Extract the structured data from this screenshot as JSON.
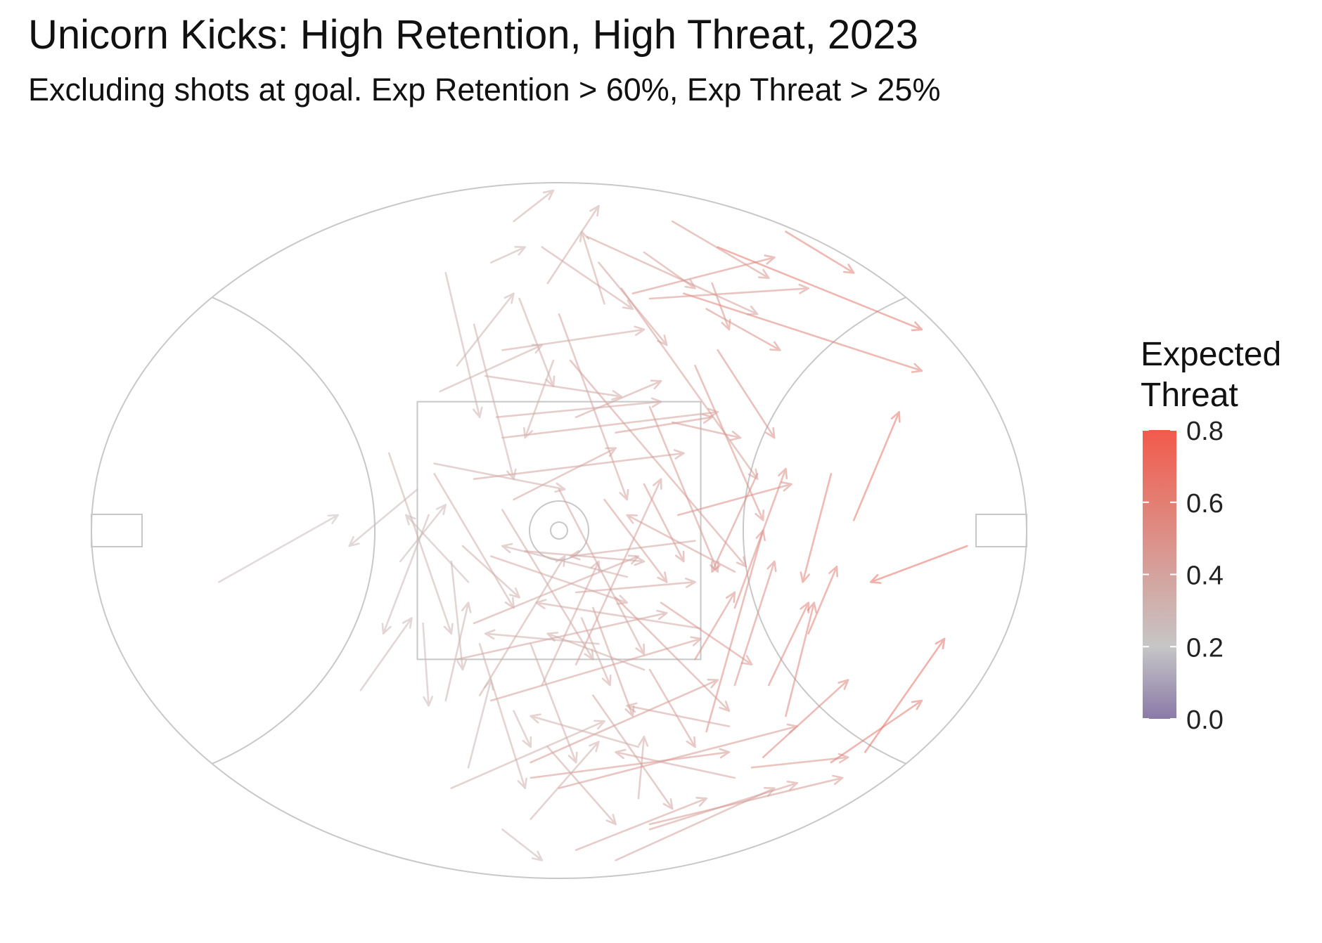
{
  "chart_data": {
    "type": "arrow-field",
    "title": "Unicorn Kicks: High Retention, High Threat, 2023",
    "subtitle": "Excluding shots at goal. Exp Retention > 60%, Exp Threat > 25%",
    "legend": {
      "title_lines": [
        "Expected",
        "Threat"
      ],
      "position": "right",
      "ticks": [
        "0.0",
        "0.2",
        "0.4",
        "0.6",
        "0.8"
      ],
      "range": [
        0,
        0.8
      ],
      "color_stops": [
        {
          "value": 0.0,
          "color": "#8a7aa8"
        },
        {
          "value": 0.2,
          "color": "#c6c6c6"
        },
        {
          "value": 0.8,
          "color": "#f25a4a"
        }
      ]
    },
    "ground": {
      "length": 165,
      "width": 135,
      "center_square": 50,
      "arc_radius": 50,
      "line_color": "#c8c8c8"
    },
    "arrows": [
      {
        "x1": -60,
        "y1": 10,
        "x2": -39,
        "y2": -3,
        "xt": 0.24
      },
      {
        "x1": -25,
        "y1": -8,
        "x2": -37,
        "y2": 3,
        "xt": 0.26
      },
      {
        "x1": -10,
        "y1": 58,
        "x2": -3,
        "y2": 64,
        "xt": 0.28
      },
      {
        "x1": -19,
        "y1": 50,
        "x2": 8,
        "y2": 37,
        "xt": 0.32
      },
      {
        "x1": 14,
        "y1": 52,
        "x2": 15,
        "y2": 40,
        "xt": 0.35
      },
      {
        "x1": 16,
        "y1": 57,
        "x2": 50,
        "y2": 48,
        "xt": 0.45
      },
      {
        "x1": 34,
        "y1": 46,
        "x2": 51,
        "y2": 44,
        "xt": 0.48
      },
      {
        "x1": 36,
        "y1": 44,
        "x2": 51,
        "y2": 29,
        "xt": 0.55
      },
      {
        "x1": 48,
        "y1": 45,
        "x2": 64,
        "y2": 33,
        "xt": 0.6
      },
      {
        "x1": 54,
        "y1": 43,
        "x2": 68,
        "y2": 21,
        "xt": 0.65
      },
      {
        "x1": 72,
        "y1": 3,
        "x2": 55,
        "y2": 10,
        "xt": 0.68
      },
      {
        "x1": 52,
        "y1": -2,
        "x2": 60,
        "y2": -23,
        "xt": 0.63
      },
      {
        "x1": 48,
        "y1": -11,
        "x2": 43,
        "y2": 10,
        "xt": 0.58
      },
      {
        "x1": 35,
        "y1": -11,
        "x2": 27,
        "y2": 8,
        "xt": 0.5
      },
      {
        "x1": 40,
        "y1": 36,
        "x2": 45,
        "y2": 14,
        "xt": 0.55
      },
      {
        "x1": 31,
        "y1": 30,
        "x2": 38,
        "y2": 6,
        "xt": 0.52
      },
      {
        "x1": 26,
        "y1": 39,
        "x2": 36,
        "y2": 0,
        "xt": 0.52
      },
      {
        "x1": 24,
        "y1": 25,
        "x2": 31,
        "y2": 12,
        "xt": 0.5
      },
      {
        "x1": 31,
        "y1": 15,
        "x2": 40,
        "y2": -12,
        "xt": 0.52
      },
      {
        "x1": 21,
        "y1": -3,
        "x2": 41,
        "y2": -9,
        "xt": 0.5
      },
      {
        "x1": 10,
        "y1": -19,
        "x2": 27,
        "y2": -22,
        "xt": 0.45
      },
      {
        "x1": 26,
        "y1": -43,
        "x2": 39,
        "y2": -35,
        "xt": 0.5
      },
      {
        "x1": 22,
        "y1": -46,
        "x2": 64,
        "y2": -31,
        "xt": 0.58
      },
      {
        "x1": 13,
        "y1": -46,
        "x2": 38,
        "y2": -53,
        "xt": 0.5
      },
      {
        "x1": 28,
        "y1": -55,
        "x2": 64,
        "y2": -39,
        "xt": 0.62
      },
      {
        "x1": 40,
        "y1": -58,
        "x2": 52,
        "y2": -50,
        "xt": 0.58
      },
      {
        "x1": 28,
        "y1": -35,
        "x2": 38,
        "y2": -18,
        "xt": 0.5
      },
      {
        "x1": 27,
        "y1": -48,
        "x2": 30,
        "y2": -39,
        "xt": 0.48
      },
      {
        "x1": 15,
        "y1": -54,
        "x2": 24,
        "y2": -47,
        "xt": 0.42
      },
      {
        "x1": 5,
        "y1": -57,
        "x2": 35,
        "y2": -42,
        "xt": 0.42
      },
      {
        "x1": 20,
        "y1": -60,
        "x2": 37,
        "y2": -49,
        "xt": 0.45
      },
      {
        "x1": 16,
        "y1": -45,
        "x2": 44,
        "y2": -47,
        "xt": 0.47
      },
      {
        "x1": 3,
        "y1": -22,
        "x2": 18,
        "y2": -29,
        "xt": 0.4
      },
      {
        "x1": -8,
        "y1": -6,
        "x2": 10,
        "y2": -16,
        "xt": 0.38
      },
      {
        "x1": -15,
        "y1": -10,
        "x2": 22,
        "y2": -15,
        "xt": 0.4
      },
      {
        "x1": -10,
        "y1": -18,
        "x2": 28,
        "y2": -23,
        "xt": 0.4
      },
      {
        "x1": -15,
        "y1": 18,
        "x2": 14,
        "y2": 5,
        "xt": 0.38
      },
      {
        "x1": -18,
        "y1": 25,
        "x2": 19,
        "y2": 16,
        "xt": 0.4
      },
      {
        "x1": -12,
        "y1": 33,
        "x2": 25,
        "y2": 21,
        "xt": 0.42
      },
      {
        "x1": -5,
        "y1": 45,
        "x2": 28,
        "y2": 29,
        "xt": 0.45
      },
      {
        "x1": -5,
        "y1": 48,
        "x2": 30,
        "y2": 43,
        "xt": 0.45
      },
      {
        "x1": 0,
        "y1": 50,
        "x2": 42,
        "y2": 38,
        "xt": 0.45
      },
      {
        "x1": 3,
        "y1": 62,
        "x2": 26,
        "y2": 52,
        "xt": 0.4
      },
      {
        "x1": 10,
        "y1": 64,
        "x2": 38,
        "y2": 50,
        "xt": 0.4
      },
      {
        "x1": 16,
        "y1": 58,
        "x2": 42,
        "y2": 49,
        "xt": 0.42
      },
      {
        "x1": -8,
        "y1": 35,
        "x2": -5,
        "y2": 42,
        "xt": 0.3
      },
      {
        "x1": -2,
        "y1": 42,
        "x2": 10,
        "y2": 57,
        "xt": 0.35
      },
      {
        "x1": 6,
        "y1": 32,
        "x2": 20,
        "y2": 54,
        "xt": 0.38
      },
      {
        "x1": 16,
        "y1": 27,
        "x2": 24,
        "y2": 42,
        "xt": 0.42
      },
      {
        "x1": -14,
        "y1": 22,
        "x2": -6,
        "y2": 50,
        "xt": 0.32
      },
      {
        "x1": -5,
        "y1": 22,
        "x2": 3,
        "y2": 45,
        "xt": 0.34
      },
      {
        "x1": 4,
        "y1": 17,
        "x2": 9,
        "y2": 30,
        "xt": 0.36
      },
      {
        "x1": -19,
        "y1": 6,
        "x2": -17,
        "y2": 27,
        "xt": 0.3
      },
      {
        "x1": -30,
        "y1": -15,
        "x2": -19,
        "y2": 20,
        "xt": 0.3
      },
      {
        "x1": -22,
        "y1": -11,
        "x2": -8,
        "y2": 15,
        "xt": 0.33
      },
      {
        "x1": -10,
        "y1": -4,
        "x2": 6,
        "y2": 25,
        "xt": 0.36
      },
      {
        "x1": 0,
        "y1": -8,
        "x2": 15,
        "y2": 24,
        "xt": 0.38
      },
      {
        "x1": 8,
        "y1": -6,
        "x2": 19,
        "y2": 10,
        "xt": 0.42
      },
      {
        "x1": 15,
        "y1": -9,
        "x2": 22,
        "y2": 6,
        "xt": 0.44
      },
      {
        "x1": -23,
        "y1": -3,
        "x2": -31,
        "y2": 20,
        "xt": 0.28
      },
      {
        "x1": -35,
        "y1": 31,
        "x2": -26,
        "y2": 17,
        "xt": 0.28
      },
      {
        "x1": -20,
        "y1": 33,
        "x2": -16,
        "y2": 14,
        "xt": 0.3
      },
      {
        "x1": -14,
        "y1": 32,
        "x2": 1,
        "y2": 5,
        "xt": 0.33
      },
      {
        "x1": -3,
        "y1": 30,
        "x2": 7,
        "y2": 6,
        "xt": 0.36
      },
      {
        "x1": 3,
        "y1": 26,
        "x2": 18,
        "y2": -10,
        "xt": 0.4
      },
      {
        "x1": -1,
        "y1": -33,
        "x2": -6,
        "y2": -18,
        "xt": 0.32
      },
      {
        "x1": -20,
        "y1": -50,
        "x2": -14,
        "y2": -22,
        "xt": 0.3
      },
      {
        "x1": -15,
        "y1": -40,
        "x2": -8,
        "y2": -10,
        "xt": 0.32
      },
      {
        "x1": -7,
        "y1": -45,
        "x2": -1,
        "y2": -28,
        "xt": 0.34
      },
      {
        "x1": 0,
        "y1": -42,
        "x2": 12,
        "y2": -6,
        "xt": 0.38
      },
      {
        "x1": -3,
        "y1": -55,
        "x2": 13,
        "y2": -43,
        "xt": 0.36
      },
      {
        "x1": 7,
        "y1": -52,
        "x2": 19,
        "y2": -36,
        "xt": 0.4
      },
      {
        "x1": 8,
        "y1": -44,
        "x2": 4,
        "y2": -58,
        "xt": 0.36
      },
      {
        "x1": -8,
        "y1": -60,
        "x2": -1,
        "y2": -66,
        "xt": 0.32
      },
      {
        "x1": -2,
        "y1": -48,
        "x2": 7,
        "y2": -63,
        "xt": 0.34
      },
      {
        "x1": -12,
        "y1": -52,
        "x2": -6,
        "y2": -55,
        "xt": 0.3
      },
      {
        "x1": -10,
        "y1": -35,
        "x2": 15,
        "y2": -39,
        "xt": 0.36
      },
      {
        "x1": -11,
        "y1": -22,
        "x2": 18,
        "y2": -25,
        "xt": 0.38
      },
      {
        "x1": -21,
        "y1": -27,
        "x2": -3,
        "y2": -36,
        "xt": 0.32
      },
      {
        "x1": -22,
        "y1": -13,
        "x2": 1,
        "y2": -8,
        "xt": 0.33
      },
      {
        "x1": -17,
        "y1": 3,
        "x2": -7,
        "y2": 13,
        "xt": 0.32
      },
      {
        "x1": -12,
        "y1": 5,
        "x2": 12,
        "y2": 14,
        "xt": 0.36
      },
      {
        "x1": 12,
        "y1": 9,
        "x2": -10,
        "y2": 3,
        "xt": 0.34
      },
      {
        "x1": 7,
        "y1": 22,
        "x2": -13,
        "y2": 20,
        "xt": 0.32
      },
      {
        "x1": 15,
        "y1": 27,
        "x2": -2,
        "y2": 20,
        "xt": 0.34
      },
      {
        "x1": 25,
        "y1": 19,
        "x2": -4,
        "y2": 14,
        "xt": 0.36
      },
      {
        "x1": 14,
        "y1": 42,
        "x2": -5,
        "y2": 36,
        "xt": 0.32
      },
      {
        "x1": 30,
        "y1": 38,
        "x2": 12,
        "y2": 34,
        "xt": 0.38
      },
      {
        "x1": 31,
        "y1": 48,
        "x2": 10,
        "y2": 43,
        "xt": 0.38
      },
      {
        "x1": -16,
        "y1": 46,
        "x2": -12,
        "y2": 29,
        "xt": 0.28
      },
      {
        "x1": -5,
        "y1": 56,
        "x2": 7,
        "y2": 41,
        "xt": 0.32
      },
      {
        "x1": -24,
        "y1": 18,
        "x2": -23,
        "y2": 34,
        "xt": 0.27
      },
      {
        "x1": -28,
        "y1": 6,
        "x2": -20,
        "y2": -5,
        "xt": 0.27
      },
      {
        "x1": -16,
        "y1": 10,
        "x2": -27,
        "y2": -3,
        "xt": 0.27
      },
      {
        "x1": 11,
        "y1": -47,
        "x2": 35,
        "y2": -10,
        "xt": 0.42
      },
      {
        "x1": 2,
        "y1": -33,
        "x2": 33,
        "y2": 7,
        "xt": 0.42
      },
      {
        "x1": 16,
        "y1": -24,
        "x2": 28,
        "y2": 8,
        "xt": 0.45
      },
      {
        "x1": 24,
        "y1": -32,
        "x2": 36,
        "y2": -2,
        "xt": 0.48
      },
      {
        "x1": 20,
        "y1": -21,
        "x2": 32,
        "y2": -18,
        "xt": 0.45
      },
      {
        "x1": 3,
        "y1": 12,
        "x2": 24,
        "y2": 10,
        "xt": 0.4
      },
      {
        "x1": -13,
        "y1": -30,
        "x2": 11,
        "y2": -26,
        "xt": 0.36
      },
      {
        "x1": -6,
        "y1": 4,
        "x2": 15,
        "y2": 6,
        "xt": 0.38
      },
      {
        "x1": 24,
        "y1": 2,
        "x2": 2,
        "y2": 5,
        "xt": 0.38
      },
      {
        "x1": -18,
        "y1": -32,
        "x2": -8,
        "y2": -46,
        "xt": 0.3
      },
      {
        "x1": 6,
        "y1": 15,
        "x2": 13,
        "y2": 36,
        "xt": 0.4
      },
      {
        "x1": 10,
        "y1": 13,
        "x2": 30,
        "y2": 35,
        "xt": 0.44
      },
      {
        "x1": 18,
        "y1": 14,
        "x2": 34,
        "y2": 26,
        "xt": 0.46
      },
      {
        "x1": 31,
        "y1": 8,
        "x2": 12,
        "y2": -3,
        "xt": 0.42
      },
      {
        "x1": 37,
        "y1": 30,
        "x2": 44,
        "y2": 14,
        "xt": 0.55
      },
      {
        "x1": 44,
        "y1": 20,
        "x2": 49,
        "y2": 7,
        "xt": 0.58
      }
    ]
  }
}
